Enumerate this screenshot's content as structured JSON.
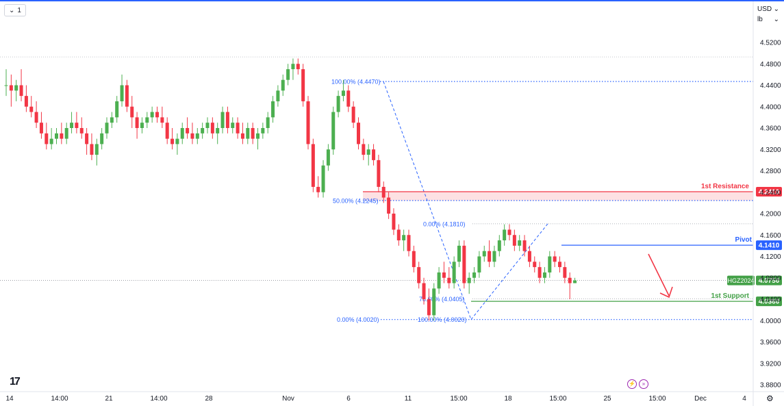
{
  "toolbar": {
    "interval_label": "1",
    "chevron": "chevron-down-icon"
  },
  "scale": {
    "currency": "USD",
    "unit": "lb"
  },
  "branding": {
    "logo_text": "17"
  },
  "bottom": {
    "icons": [
      "lightning-icon",
      "fast-forward-icon",
      "gear-icon"
    ]
  },
  "colors": {
    "up": "#26a69a",
    "upFill": "#4caf50",
    "down": "#f23645",
    "resistance": "#f23645",
    "support": "#43a047",
    "pivot": "#2962ff",
    "fib": "#2962ff",
    "arrow": "#f23645",
    "price": "#43a047"
  },
  "chart_data": {
    "type": "candlestick",
    "symbol": "HGZ2024",
    "last_price": "4.0750",
    "ylim": [
      3.88,
      4.55
    ],
    "y_ticks": [
      "4.5200",
      "4.4800",
      "4.4400",
      "4.4000",
      "4.3600",
      "4.3200",
      "4.2800",
      "4.2400",
      "4.2000",
      "4.1600",
      "4.1200",
      "4.0800",
      "4.0400",
      "4.0000",
      "3.9600",
      "3.9200",
      "3.8800"
    ],
    "x_ticks": [
      "14",
      "14:00",
      "21",
      "14:00",
      "28",
      "Nov",
      "6",
      "11",
      "15:00",
      "18",
      "15:00",
      "25",
      "15:00",
      "Dec",
      "4"
    ],
    "levels": [
      {
        "name": "1st Resistance",
        "value": "4.2410",
        "color": "resistance"
      },
      {
        "name": "Pivot",
        "value": "4.1410",
        "color": "pivot"
      },
      {
        "name": "1st Support",
        "value": "4.0360",
        "color": "support"
      }
    ],
    "fib_labels": [
      "100.00% (4.4470)",
      "50.00% (4.2245)",
      "0.00% (4.0020)",
      "0.00% (4.1810)",
      "78.60% (4.0405)",
      "100.00% (4.0020)"
    ],
    "candles": [
      [
        4.44,
        4.47,
        4.42,
        4.44
      ],
      [
        4.44,
        4.46,
        4.4,
        4.43
      ],
      [
        4.43,
        4.45,
        4.41,
        4.44
      ],
      [
        4.44,
        4.47,
        4.41,
        4.42
      ],
      [
        4.42,
        4.44,
        4.39,
        4.4
      ],
      [
        4.4,
        4.42,
        4.38,
        4.39
      ],
      [
        4.39,
        4.41,
        4.36,
        4.37
      ],
      [
        4.37,
        4.39,
        4.34,
        4.35
      ],
      [
        4.35,
        4.37,
        4.32,
        4.33
      ],
      [
        4.33,
        4.36,
        4.32,
        4.34
      ],
      [
        4.34,
        4.36,
        4.33,
        4.35
      ],
      [
        4.35,
        4.37,
        4.33,
        4.34
      ],
      [
        4.34,
        4.37,
        4.33,
        4.36
      ],
      [
        4.36,
        4.39,
        4.35,
        4.37
      ],
      [
        4.37,
        4.39,
        4.35,
        4.36
      ],
      [
        4.36,
        4.38,
        4.34,
        4.35
      ],
      [
        4.35,
        4.36,
        4.31,
        4.33
      ],
      [
        4.33,
        4.35,
        4.3,
        4.31
      ],
      [
        4.31,
        4.34,
        4.29,
        4.33
      ],
      [
        4.33,
        4.36,
        4.32,
        4.35
      ],
      [
        4.35,
        4.38,
        4.34,
        4.37
      ],
      [
        4.37,
        4.39,
        4.36,
        4.38
      ],
      [
        4.38,
        4.42,
        4.37,
        4.41
      ],
      [
        4.41,
        4.46,
        4.4,
        4.44
      ],
      [
        4.44,
        4.45,
        4.39,
        4.4
      ],
      [
        4.4,
        4.42,
        4.36,
        4.38
      ],
      [
        4.38,
        4.39,
        4.34,
        4.36
      ],
      [
        4.36,
        4.38,
        4.35,
        4.37
      ],
      [
        4.37,
        4.39,
        4.36,
        4.38
      ],
      [
        4.38,
        4.4,
        4.37,
        4.39
      ],
      [
        4.39,
        4.4,
        4.37,
        4.38
      ],
      [
        4.38,
        4.4,
        4.36,
        4.37
      ],
      [
        4.37,
        4.38,
        4.33,
        4.34
      ],
      [
        4.34,
        4.36,
        4.32,
        4.33
      ],
      [
        4.33,
        4.35,
        4.31,
        4.34
      ],
      [
        4.34,
        4.37,
        4.33,
        4.36
      ],
      [
        4.36,
        4.38,
        4.34,
        4.35
      ],
      [
        4.35,
        4.37,
        4.33,
        4.34
      ],
      [
        4.34,
        4.36,
        4.33,
        4.35
      ],
      [
        4.35,
        4.37,
        4.34,
        4.36
      ],
      [
        4.36,
        4.38,
        4.35,
        4.37
      ],
      [
        4.37,
        4.38,
        4.34,
        4.35
      ],
      [
        4.35,
        4.37,
        4.33,
        4.36
      ],
      [
        4.36,
        4.4,
        4.35,
        4.39
      ],
      [
        4.39,
        4.4,
        4.35,
        4.36
      ],
      [
        4.36,
        4.38,
        4.35,
        4.37
      ],
      [
        4.37,
        4.38,
        4.34,
        4.35
      ],
      [
        4.35,
        4.37,
        4.33,
        4.34
      ],
      [
        4.34,
        4.37,
        4.33,
        4.36
      ],
      [
        4.36,
        4.37,
        4.33,
        4.34
      ],
      [
        4.34,
        4.36,
        4.32,
        4.35
      ],
      [
        4.35,
        4.37,
        4.34,
        4.36
      ],
      [
        4.36,
        4.39,
        4.35,
        4.38
      ],
      [
        4.38,
        4.42,
        4.37,
        4.41
      ],
      [
        4.41,
        4.44,
        4.4,
        4.43
      ],
      [
        4.43,
        4.46,
        4.42,
        4.45
      ],
      [
        4.45,
        4.48,
        4.44,
        4.47
      ],
      [
        4.47,
        4.49,
        4.45,
        4.48
      ],
      [
        4.48,
        4.49,
        4.46,
        4.47
      ],
      [
        4.47,
        4.48,
        4.4,
        4.41
      ],
      [
        4.41,
        4.42,
        4.32,
        4.33
      ],
      [
        4.33,
        4.34,
        4.24,
        4.25
      ],
      [
        4.25,
        4.27,
        4.23,
        4.24
      ],
      [
        4.24,
        4.3,
        4.23,
        4.29
      ],
      [
        4.29,
        4.33,
        4.28,
        4.32
      ],
      [
        4.32,
        4.4,
        4.31,
        4.39
      ],
      [
        4.39,
        4.43,
        4.38,
        4.42
      ],
      [
        4.42,
        4.45,
        4.41,
        4.43
      ],
      [
        4.43,
        4.44,
        4.39,
        4.4
      ],
      [
        4.4,
        4.41,
        4.36,
        4.37
      ],
      [
        4.37,
        4.38,
        4.32,
        4.33
      ],
      [
        4.33,
        4.34,
        4.3,
        4.31
      ],
      [
        4.31,
        4.33,
        4.29,
        4.32
      ],
      [
        4.32,
        4.33,
        4.29,
        4.3
      ],
      [
        4.3,
        4.31,
        4.24,
        4.25
      ],
      [
        4.25,
        4.26,
        4.22,
        4.23
      ],
      [
        4.23,
        4.24,
        4.19,
        4.2
      ],
      [
        4.2,
        4.21,
        4.16,
        4.17
      ],
      [
        4.17,
        4.18,
        4.14,
        4.15
      ],
      [
        4.15,
        4.17,
        4.13,
        4.16
      ],
      [
        4.16,
        4.17,
        4.12,
        4.13
      ],
      [
        4.13,
        4.14,
        4.09,
        4.1
      ],
      [
        4.1,
        4.11,
        4.06,
        4.07
      ],
      [
        4.07,
        4.08,
        4.03,
        4.04
      ],
      [
        4.04,
        4.06,
        4.0,
        4.01
      ],
      [
        4.01,
        4.07,
        4.0,
        4.06
      ],
      [
        4.06,
        4.1,
        4.05,
        4.09
      ],
      [
        4.09,
        4.11,
        4.07,
        4.08
      ],
      [
        4.08,
        4.1,
        4.06,
        4.07
      ],
      [
        4.07,
        4.12,
        4.06,
        4.11
      ],
      [
        4.11,
        4.15,
        4.1,
        4.14
      ],
      [
        4.14,
        4.15,
        4.06,
        4.07
      ],
      [
        4.07,
        4.09,
        4.05,
        4.08
      ],
      [
        4.08,
        4.1,
        4.07,
        4.09
      ],
      [
        4.09,
        4.13,
        4.08,
        4.12
      ],
      [
        4.12,
        4.14,
        4.11,
        4.13
      ],
      [
        4.13,
        4.15,
        4.1,
        4.11
      ],
      [
        4.11,
        4.14,
        4.1,
        4.13
      ],
      [
        4.13,
        4.16,
        4.12,
        4.15
      ],
      [
        4.15,
        4.18,
        4.14,
        4.17
      ],
      [
        4.17,
        4.18,
        4.15,
        4.16
      ],
      [
        4.16,
        4.17,
        4.13,
        4.14
      ],
      [
        4.14,
        4.16,
        4.13,
        4.15
      ],
      [
        4.15,
        4.16,
        4.12,
        4.13
      ],
      [
        4.13,
        4.14,
        4.1,
        4.11
      ],
      [
        4.11,
        4.12,
        4.09,
        4.1
      ],
      [
        4.1,
        4.11,
        4.07,
        4.08
      ],
      [
        4.08,
        4.1,
        4.07,
        4.09
      ],
      [
        4.09,
        4.13,
        4.08,
        4.12
      ],
      [
        4.12,
        4.13,
        4.1,
        4.11
      ],
      [
        4.11,
        4.12,
        4.09,
        4.1
      ],
      [
        4.1,
        4.11,
        4.07,
        4.08
      ],
      [
        4.08,
        4.09,
        4.04,
        4.07
      ],
      [
        4.07,
        4.08,
        4.07,
        4.075
      ]
    ]
  }
}
